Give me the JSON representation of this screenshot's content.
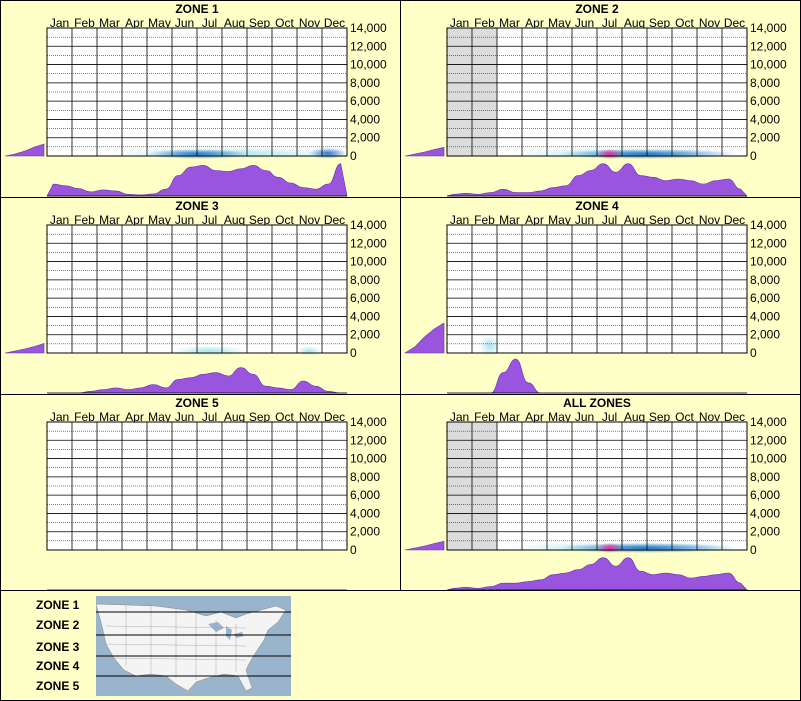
{
  "colors": {
    "background": "#ffffc8",
    "histogram": "#9955dd",
    "grid": "#000000",
    "heat_low": "#a6e4ea",
    "heat_mid": "#1a6fc8",
    "heat_high": "#ff1f8f",
    "no_data_shade": "#dcdcdc"
  },
  "months": [
    "Jan",
    "Feb",
    "Mar",
    "Apr",
    "May",
    "Jun",
    "Jul",
    "Aug",
    "Sep",
    "Oct",
    "Nov",
    "Dec"
  ],
  "y_ticks": [
    "14,000",
    "12,000",
    "10,000",
    "8,000",
    "6,000",
    "4,000",
    "2,000",
    "0"
  ],
  "chart_data": [
    {
      "type": "heatmap",
      "title": "ZONE 1",
      "ylim": [
        0,
        14000
      ],
      "no_data_months": [],
      "heat": [
        {
          "from": "Mar 15",
          "to": "Dec 31",
          "elev": [
            0,
            800
          ],
          "level": "low"
        },
        {
          "from": "May 1",
          "to": "Aug 31",
          "elev": [
            0,
            600
          ],
          "level": "mid"
        },
        {
          "from": "Nov 15",
          "to": "Dec 31",
          "elev": [
            0,
            800
          ],
          "level": "mid"
        }
      ],
      "elevation_hist": [
        0.05,
        0.12,
        0.22,
        0.3
      ],
      "month_hist": [
        0.35,
        0.3,
        0.22,
        0.12,
        0.18,
        0.15,
        0.05,
        0.03,
        0.06,
        0.2,
        0.6,
        0.85,
        0.9,
        0.75,
        0.72,
        0.8,
        0.9,
        0.75,
        0.55,
        0.38,
        0.25,
        0.2,
        0.35,
        0.95
      ]
    },
    {
      "type": "heatmap",
      "title": "ZONE 2",
      "ylim": [
        0,
        14000
      ],
      "no_data_months": [
        "Jan",
        "Feb"
      ],
      "heat": [
        {
          "from": "Mar 15",
          "to": "Dec 31",
          "elev": [
            0,
            800
          ],
          "level": "low"
        },
        {
          "from": "May 15",
          "to": "Dec 15",
          "elev": [
            0,
            600
          ],
          "level": "mid"
        },
        {
          "from": "Jul 1",
          "to": "Jul 31",
          "elev": [
            0,
            600
          ],
          "level": "high"
        }
      ],
      "elevation_hist": [
        0.05,
        0.1,
        0.16,
        0.22
      ],
      "month_hist": [
        0.05,
        0.08,
        0.05,
        0.1,
        0.2,
        0.1,
        0.1,
        0.15,
        0.25,
        0.3,
        0.6,
        0.75,
        0.95,
        0.7,
        0.95,
        0.6,
        0.55,
        0.45,
        0.5,
        0.45,
        0.35,
        0.45,
        0.5,
        0.2
      ]
    },
    {
      "type": "heatmap",
      "title": "ZONE 3",
      "ylim": [
        0,
        14000
      ],
      "no_data_months": [],
      "heat": [
        {
          "from": "Jun 1",
          "to": "Aug 31",
          "elev": [
            0,
            700
          ],
          "level": "low"
        },
        {
          "from": "Nov 1",
          "to": "Nov 30",
          "elev": [
            0,
            400
          ],
          "level": "low"
        }
      ],
      "elevation_hist": [
        0.05,
        0.1,
        0.16,
        0.24
      ],
      "month_hist": [
        0,
        0,
        0,
        0.05,
        0.1,
        0.15,
        0.1,
        0.15,
        0.25,
        0.15,
        0.4,
        0.45,
        0.55,
        0.6,
        0.5,
        0.75,
        0.55,
        0.2,
        0.15,
        0.1,
        0.35,
        0.2,
        0.05,
        0
      ]
    },
    {
      "type": "heatmap",
      "title": "ZONE 4",
      "ylim": [
        0,
        14000
      ],
      "no_data_months": [],
      "heat": [
        {
          "from": "Feb 10",
          "to": "Mar 5",
          "elev": [
            0,
            1800
          ],
          "level": "low"
        }
      ],
      "elevation_hist": [
        0.15,
        0.4,
        0.6,
        0.75
      ],
      "month_hist": [
        0,
        0,
        0,
        0,
        0.6,
        1,
        0.3,
        0,
        0,
        0,
        0,
        0,
        0,
        0,
        0,
        0,
        0,
        0,
        0,
        0,
        0,
        0,
        0,
        0
      ]
    },
    {
      "type": "heatmap",
      "title": "ZONE 5",
      "ylim": [
        0,
        14000
      ],
      "no_data_months": [],
      "heat": [],
      "elevation_hist": [],
      "month_hist": []
    },
    {
      "type": "heatmap",
      "title": "ALL ZONES",
      "ylim": [
        0,
        14000
      ],
      "no_data_months": [
        "Jan",
        "Feb"
      ],
      "heat": [
        {
          "from": "Mar 15",
          "to": "Dec 31",
          "elev": [
            0,
            800
          ],
          "level": "low"
        },
        {
          "from": "May 15",
          "to": "Dec 15",
          "elev": [
            0,
            600
          ],
          "level": "mid"
        },
        {
          "from": "Jul 1",
          "to": "Jul 31",
          "elev": [
            0,
            600
          ],
          "level": "high"
        }
      ],
      "elevation_hist": [
        0.05,
        0.1,
        0.16,
        0.22
      ],
      "month_hist": [
        0.05,
        0.08,
        0.05,
        0.1,
        0.2,
        0.2,
        0.25,
        0.3,
        0.45,
        0.5,
        0.6,
        0.75,
        0.95,
        0.7,
        0.95,
        0.55,
        0.45,
        0.5,
        0.45,
        0.35,
        0.4,
        0.45,
        0.5,
        0.2
      ]
    }
  ],
  "legend": {
    "zones": [
      "ZONE 1",
      "ZONE 2",
      "ZONE 3",
      "ZONE 4",
      "ZONE 5"
    ]
  }
}
